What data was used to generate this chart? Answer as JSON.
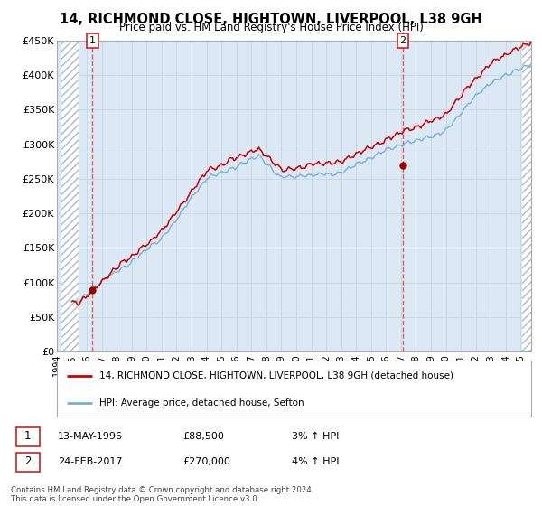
{
  "title": "14, RICHMOND CLOSE, HIGHTOWN, LIVERPOOL, L38 9GH",
  "subtitle": "Price paid vs. HM Land Registry's House Price Index (HPI)",
  "ylim": [
    0,
    450000
  ],
  "yticks": [
    0,
    50000,
    100000,
    150000,
    200000,
    250000,
    300000,
    350000,
    400000,
    450000
  ],
  "ytick_labels": [
    "£0",
    "£50K",
    "£100K",
    "£150K",
    "£200K",
    "£250K",
    "£300K",
    "£350K",
    "£400K",
    "£450K"
  ],
  "xlim_start": 1994.3,
  "xlim_end": 2025.7,
  "hatch_left_end": 1995.42,
  "hatch_right_start": 2025.08,
  "transaction1_x": 1996.37,
  "transaction1_y": 88500,
  "transaction1_label": "1",
  "transaction1_date": "13-MAY-1996",
  "transaction1_price": "£88,500",
  "transaction1_hpi": "3% ↑ HPI",
  "transaction2_x": 2017.12,
  "transaction2_y": 270000,
  "transaction2_label": "2",
  "transaction2_date": "24-FEB-2017",
  "transaction2_price": "£270,000",
  "transaction2_hpi": "4% ↑ HPI",
  "legend_label1": "14, RICHMOND CLOSE, HIGHTOWN, LIVERPOOL, L38 9GH (detached house)",
  "legend_label2": "HPI: Average price, detached house, Sefton",
  "footer": "Contains HM Land Registry data © Crown copyright and database right 2024.\nThis data is licensed under the Open Government Licence v3.0.",
  "line1_color": "#cc0000",
  "line2_color": "#7bafd4",
  "grid_color": "#c8d8e8",
  "bg_color": "#dce8f4",
  "marker_color": "#990000",
  "dashed_color": "#e06060"
}
